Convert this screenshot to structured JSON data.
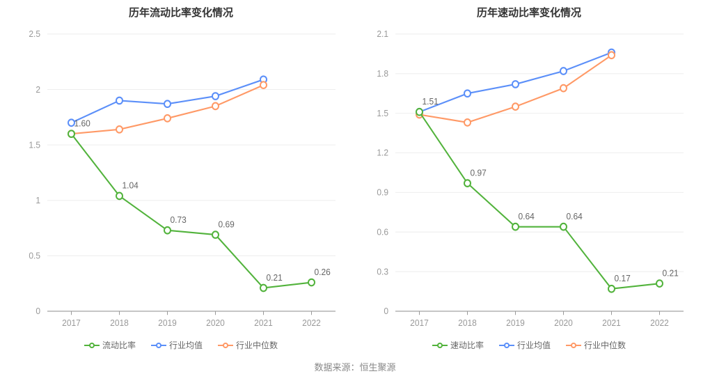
{
  "footer": {
    "source_label": "数据来源：恒生聚源"
  },
  "legend_labels": {
    "series_main_left": "流动比率",
    "series_main_right": "速动比率",
    "series_avg": "行业均值",
    "series_median": "行业中位数"
  },
  "colors": {
    "green": "#52b33c",
    "blue": "#5b8ff9",
    "orange": "#ff9966",
    "grid": "#eeeeee",
    "axis": "#999999",
    "text_axis": "#999999",
    "text_label": "#666666",
    "bg": "#ffffff"
  },
  "chart_style": {
    "line_width": 2,
    "marker_radius": 4.5,
    "marker_fill": "#ffffff",
    "title_fontsize": 15,
    "axis_fontsize": 12,
    "pointlabel_fontsize": 12
  },
  "chart_left": {
    "type": "line",
    "title": "历年流动比率变化情况",
    "categories": [
      "2017",
      "2018",
      "2019",
      "2020",
      "2021",
      "2022"
    ],
    "ylim": [
      0,
      2.5
    ],
    "ytick_step": 0.5,
    "yticks": [
      0,
      0.5,
      1,
      1.5,
      2,
      2.5
    ],
    "series": [
      {
        "key": "main",
        "label_key": "series_main_left",
        "color_key": "green",
        "values": [
          1.6,
          1.04,
          0.73,
          0.69,
          0.21,
          0.26
        ],
        "show_point_labels": true,
        "point_labels": [
          "1.60",
          "1.04",
          "0.73",
          "0.69",
          "0.21",
          "0.26"
        ]
      },
      {
        "key": "avg",
        "label_key": "series_avg",
        "color_key": "blue",
        "values": [
          1.7,
          1.9,
          1.87,
          1.94,
          2.09,
          null
        ],
        "show_point_labels": false
      },
      {
        "key": "median",
        "label_key": "series_median",
        "color_key": "orange",
        "values": [
          1.6,
          1.64,
          1.74,
          1.85,
          2.04,
          null
        ],
        "show_point_labels": false
      }
    ]
  },
  "chart_right": {
    "type": "line",
    "title": "历年速动比率变化情况",
    "categories": [
      "2017",
      "2018",
      "2019",
      "2020",
      "2021",
      "2022"
    ],
    "ylim": [
      0,
      2.1
    ],
    "ytick_step": 0.3,
    "yticks": [
      0,
      0.3,
      0.6,
      0.9,
      1.2,
      1.5,
      1.8,
      2.1
    ],
    "series": [
      {
        "key": "main",
        "label_key": "series_main_right",
        "color_key": "green",
        "values": [
          1.51,
          0.97,
          0.64,
          0.64,
          0.17,
          0.21
        ],
        "show_point_labels": true,
        "point_labels": [
          "1.51",
          "0.97",
          "0.64",
          "0.64",
          "0.17",
          "0.21"
        ]
      },
      {
        "key": "avg",
        "label_key": "series_avg",
        "color_key": "blue",
        "values": [
          1.51,
          1.65,
          1.72,
          1.82,
          1.96,
          null
        ],
        "show_point_labels": false
      },
      {
        "key": "median",
        "label_key": "series_median",
        "color_key": "orange",
        "values": [
          1.49,
          1.43,
          1.55,
          1.69,
          1.94,
          null
        ],
        "show_point_labels": false
      }
    ]
  }
}
